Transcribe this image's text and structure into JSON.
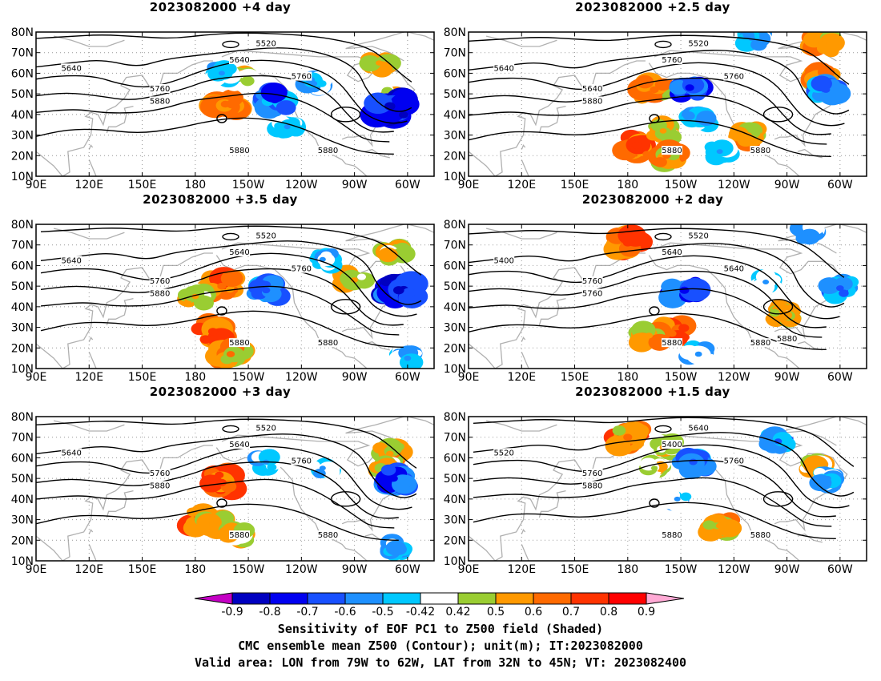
{
  "chart_data": {
    "type": "heatmap",
    "xlim": [
      "90E",
      "45W"
    ],
    "ylim": [
      "10N",
      "80N"
    ],
    "x_ticks": [
      "90E",
      "120E",
      "150E",
      "180",
      "150W",
      "120W",
      "90W",
      "60W"
    ],
    "y_ticks": [
      "10N",
      "20N",
      "30N",
      "40N",
      "50N",
      "60N",
      "70N",
      "80N"
    ],
    "panels": [
      {
        "title": "2023082000 +4 day",
        "contour_labels": [
          "5640",
          "5520",
          "5640",
          "5760",
          "5760",
          "5880",
          "5880",
          "5880"
        ],
        "positive_blobs": [
          [
            -70,
            48,
            0.55
          ],
          [
            -163,
            45,
            0.7
          ],
          [
            -155,
            57,
            0.5
          ],
          [
            -76,
            65,
            0.55
          ]
        ],
        "negative_blobs": [
          [
            -70,
            44,
            -0.85
          ],
          [
            -135,
            47,
            -0.7
          ],
          [
            -113,
            55,
            -0.55
          ],
          [
            -165,
            60,
            -0.5
          ],
          [
            -128,
            34,
            -0.5
          ]
        ]
      },
      {
        "title": "2023082000 +2.5 day",
        "contour_labels": [
          "5640",
          "5520",
          "5760",
          "5640",
          "5760",
          "5880",
          "5880",
          "5880"
        ],
        "positive_blobs": [
          [
            -165,
            52,
            0.7
          ],
          [
            -175,
            25,
            0.75
          ],
          [
            -160,
            32,
            0.55
          ],
          [
            -158,
            20,
            0.65
          ],
          [
            -70,
            74,
            0.6
          ],
          [
            -70,
            58,
            0.65
          ],
          [
            -112,
            30,
            0.6
          ]
        ],
        "negative_blobs": [
          [
            -145,
            53,
            -0.7
          ],
          [
            -140,
            37,
            -0.55
          ],
          [
            -110,
            77,
            -0.55
          ],
          [
            -68,
            52,
            -0.65
          ],
          [
            -128,
            22,
            -0.5
          ]
        ]
      },
      {
        "title": "2023082000 +3.5 day",
        "contour_labels": [
          "5640",
          "5520",
          "5640",
          "5760",
          "5760",
          "5880",
          "5880",
          "5880"
        ],
        "positive_blobs": [
          [
            -165,
            50,
            0.7
          ],
          [
            -170,
            28,
            0.75
          ],
          [
            -160,
            17,
            0.65
          ],
          [
            -180,
            45,
            0.55
          ],
          [
            -68,
            66,
            0.55
          ],
          [
            -90,
            53,
            0.55
          ]
        ],
        "negative_blobs": [
          [
            -65,
            48,
            -0.85
          ],
          [
            -140,
            48,
            -0.65
          ],
          [
            -108,
            63,
            -0.5
          ],
          [
            -60,
            15,
            -0.55
          ]
        ]
      },
      {
        "title": "2023082000 +2 day",
        "contour_labels": [
          "5400",
          "5520",
          "5640",
          "5760",
          "5640",
          "5760",
          "5880",
          "5880",
          "5880"
        ],
        "positive_blobs": [
          [
            -180,
            71,
            0.75
          ],
          [
            -155,
            27,
            0.7
          ],
          [
            -168,
            26,
            0.6
          ],
          [
            -92,
            37,
            0.55
          ]
        ],
        "negative_blobs": [
          [
            -148,
            48,
            -0.75
          ],
          [
            -140,
            17,
            -0.55
          ],
          [
            -78,
            76,
            -0.55
          ],
          [
            -60,
            49,
            -0.6
          ],
          [
            -102,
            52,
            -0.5
          ]
        ]
      },
      {
        "title": "2023082000 +3 day",
        "contour_labels": [
          "5640",
          "5520",
          "5640",
          "5760",
          "5760",
          "5880",
          "5880",
          "5880"
        ],
        "positive_blobs": [
          [
            -165,
            48,
            0.75
          ],
          [
            -178,
            30,
            0.7
          ],
          [
            -170,
            28,
            0.6
          ],
          [
            -156,
            22,
            0.55
          ],
          [
            -70,
            62,
            0.6
          ],
          [
            -72,
            55,
            0.55
          ]
        ],
        "negative_blobs": [
          [
            -68,
            50,
            -0.7
          ],
          [
            -140,
            58,
            -0.5
          ],
          [
            -108,
            55,
            -0.5
          ],
          [
            -65,
            16,
            -0.55
          ]
        ]
      },
      {
        "title": "2023082000 +1.5 day",
        "contour_labels": [
          "5520",
          "5640",
          "5400",
          "5760",
          "5760",
          "5880",
          "5880",
          "5880"
        ],
        "positive_blobs": [
          [
            -180,
            70,
            0.7
          ],
          [
            -160,
            65,
            0.55
          ],
          [
            -75,
            55,
            0.55
          ],
          [
            -128,
            27,
            0.6
          ],
          [
            -165,
            55,
            0.5
          ]
        ],
        "negative_blobs": [
          [
            -143,
            58,
            -0.65
          ],
          [
            -152,
            40,
            -0.5
          ],
          [
            -95,
            68,
            -0.6
          ],
          [
            -67,
            50,
            -0.55
          ]
        ]
      }
    ],
    "colorbar": {
      "levels": [
        "-0.9",
        "-0.8",
        "-0.7",
        "-0.6",
        "-0.5",
        "-0.42",
        "0.42",
        "0.5",
        "0.6",
        "0.7",
        "0.8",
        "0.9"
      ],
      "colors": [
        "#c400c4",
        "#0000c0",
        "#0000f0",
        "#1850ff",
        "#1e90ff",
        "#00c8ff",
        "#ffffff",
        "#9acd32",
        "#ff9900",
        "#ff6a00",
        "#ff3300",
        "#ff0000",
        "#ffaad5"
      ]
    }
  },
  "footer": {
    "line1": "Sensitivity of EOF PC1 to Z500 field (Shaded)",
    "line2": "CMC ensemble mean Z500 (Contour); unit(m); IT:2023082000",
    "line3": "Valid area: LON from 79W to 62W, LAT from 32N to 45N; VT: 2023082400"
  }
}
